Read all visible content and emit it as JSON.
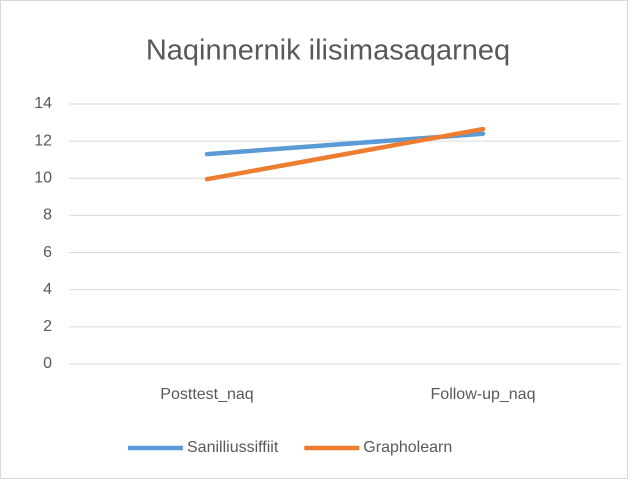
{
  "chart_data": {
    "type": "line",
    "title": "Naqinnernik ilisimasaqarneq",
    "categories": [
      "Posttest_naq",
      "Follow-up_naq"
    ],
    "series": [
      {
        "name": "Sanilliussiffiit",
        "color": "#5b9bd5",
        "values": [
          11.3,
          12.4
        ]
      },
      {
        "name": "Grapholearn",
        "color": "#ed7d31",
        "values": [
          9.95,
          12.65
        ]
      }
    ],
    "ylim": [
      0,
      14
    ],
    "yticks": [
      0,
      2,
      4,
      6,
      8,
      10,
      12,
      14
    ],
    "grid": true,
    "legend": "bottom"
  }
}
